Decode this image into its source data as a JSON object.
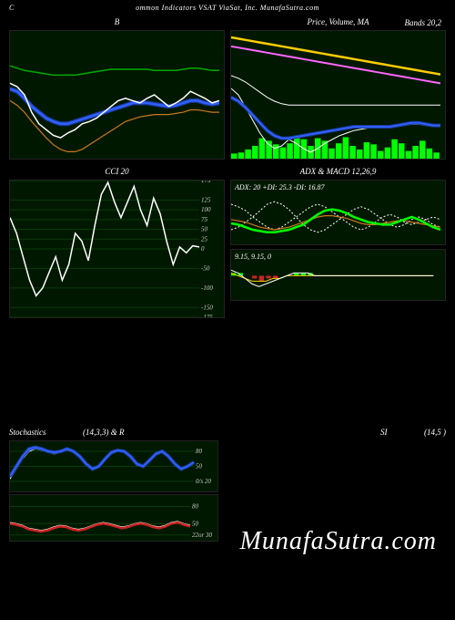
{
  "header": {
    "left": "C",
    "main": "ommon Indicators VSAT ViaSat, Inc. MunafaSutra.com"
  },
  "watermark": "MunafaSutra.com",
  "colors": {
    "bg_panel": "#001800",
    "grid": "#0a3a0a",
    "white": "#ffffff",
    "blue": "#3060ff",
    "darkblue": "#1a3a9a",
    "green": "#00aa00",
    "bright_green": "#00ff00",
    "orange": "#cc7722",
    "yellow": "#ffcc00",
    "magenta": "#ff66ff",
    "red": "#cc2222",
    "gray": "#888888"
  },
  "panels": {
    "topleft": {
      "title": "B",
      "height": 140,
      "series": {
        "white": [
          95,
          92,
          85,
          70,
          60,
          55,
          50,
          48,
          52,
          55,
          60,
          62,
          65,
          70,
          75,
          80,
          82,
          80,
          78,
          82,
          85,
          80,
          75,
          78,
          82,
          88,
          85,
          82,
          78,
          80
        ],
        "blue_thick": [
          90,
          88,
          82,
          75,
          70,
          65,
          62,
          60,
          60,
          62,
          64,
          66,
          68,
          70,
          72,
          74,
          76,
          78,
          78,
          78,
          77,
          76,
          75,
          76,
          78,
          80,
          80,
          78,
          77,
          78
        ],
        "green": [
          110,
          108,
          106,
          105,
          104,
          103,
          102,
          102,
          102,
          102,
          103,
          104,
          105,
          106,
          107,
          107,
          107,
          107,
          107,
          107,
          106,
          106,
          106,
          106,
          107,
          108,
          108,
          107,
          106,
          106
        ],
        "orange": [
          80,
          76,
          70,
          62,
          55,
          48,
          42,
          38,
          36,
          36,
          38,
          42,
          46,
          50,
          54,
          58,
          62,
          64,
          66,
          67,
          68,
          68,
          68,
          69,
          70,
          72,
          72,
          71,
          70,
          70
        ]
      }
    },
    "topright": {
      "title": "Price, Volume, MA",
      "extra_title": "Bands 20,2",
      "height": 140,
      "series": {
        "yellow": [
          135,
          134,
          133,
          132,
          131,
          130,
          129,
          128,
          127,
          126,
          125,
          124,
          123,
          122,
          121,
          120,
          119,
          118,
          117,
          116,
          115,
          114,
          113,
          112,
          111,
          110,
          109,
          108,
          107,
          106
        ],
        "magenta": [
          128,
          127,
          126,
          125,
          124,
          123,
          122,
          121,
          120,
          119,
          118,
          117,
          116,
          115,
          114,
          113,
          112,
          111,
          110,
          109,
          108,
          107,
          106,
          105,
          104,
          103,
          102,
          101,
          100,
          99
        ],
        "white_upper": [
          105,
          103,
          100,
          96,
          92,
          88,
          85,
          83,
          82,
          82,
          82,
          82,
          82,
          82,
          82,
          82,
          82,
          82,
          82,
          82,
          82,
          82,
          82,
          82,
          82,
          82,
          82,
          82,
          82,
          82
        ],
        "white_lower": [
          95,
          90,
          80,
          70,
          60,
          52,
          48,
          50,
          55,
          52,
          48,
          45,
          48,
          52,
          55,
          58,
          60,
          62,
          63,
          64,
          65,
          65,
          65,
          65,
          66,
          67,
          67,
          66,
          65,
          65
        ],
        "blue": [
          88,
          85,
          80,
          74,
          68,
          62,
          58,
          56,
          56,
          57,
          58,
          59,
          60,
          61,
          62,
          63,
          64,
          65,
          65,
          65,
          65,
          65,
          65,
          66,
          67,
          68,
          68,
          67,
          66,
          66
        ]
      },
      "volume": [
        10,
        12,
        18,
        25,
        40,
        35,
        28,
        22,
        30,
        45,
        38,
        25,
        40,
        35,
        20,
        30,
        42,
        25,
        18,
        32,
        28,
        15,
        22,
        38,
        30,
        15,
        25,
        35,
        20,
        12
      ]
    },
    "cci": {
      "title": "CCI 20",
      "height": 150,
      "ylim": [
        -175,
        175
      ],
      "yticks": [
        175,
        125,
        100,
        75,
        50,
        25,
        0,
        -50,
        -100,
        -150,
        -175
      ],
      "series": [
        80,
        40,
        -20,
        -80,
        -120,
        -100,
        -60,
        -20,
        -80,
        -40,
        40,
        20,
        -30,
        60,
        140,
        170,
        120,
        80,
        120,
        160,
        100,
        60,
        130,
        90,
        20,
        -40,
        5,
        -10,
        8,
        5
      ]
    },
    "adx": {
      "title": "ADX  & MACD 12,26,9",
      "annotation": "ADX: 20  +DI: 25.3 -DI: 16.87",
      "height": 70,
      "series": {
        "green_thick": [
          25,
          24,
          22,
          20,
          19,
          18,
          18,
          19,
          20,
          22,
          24,
          28,
          32,
          35,
          36,
          35,
          33,
          30,
          28,
          26,
          25,
          24,
          24,
          26,
          28,
          30,
          28,
          25,
          22,
          20
        ],
        "white_dash1": [
          40,
          38,
          35,
          30,
          26,
          22,
          20,
          22,
          26,
          30,
          34,
          38,
          40,
          38,
          34,
          30,
          26,
          22,
          20,
          22,
          26,
          30,
          32,
          30,
          26,
          24,
          26,
          28,
          30,
          28
        ],
        "white_dash2": [
          20,
          22,
          26,
          30,
          35,
          40,
          42,
          40,
          36,
          30,
          24,
          20,
          18,
          20,
          24,
          28,
          32,
          36,
          38,
          36,
          32,
          28,
          24,
          22,
          24,
          28,
          30,
          28,
          24,
          22
        ],
        "orange": [
          28,
          27,
          26,
          24,
          22,
          21,
          20,
          21,
          22,
          24,
          26,
          28,
          30,
          31,
          31,
          30,
          29,
          27,
          25,
          24,
          24,
          25,
          26,
          27,
          27,
          26,
          25,
          24,
          23,
          22
        ]
      }
    },
    "macd": {
      "annotation": "9.15, 9.15, 0",
      "height": 55,
      "series": {
        "line_white": [
          2,
          1,
          -1,
          -3,
          -4,
          -3,
          -2,
          -1,
          0,
          1,
          1,
          1,
          0,
          0,
          0,
          0,
          0,
          0,
          0,
          0,
          0,
          0,
          0,
          0,
          0,
          0,
          0,
          0,
          0,
          0
        ],
        "line_yellow": [
          1,
          0,
          -1,
          -2,
          -2,
          -2,
          -1,
          -1,
          0,
          0,
          0,
          0,
          0,
          0,
          0,
          0,
          0,
          0,
          0,
          0,
          0,
          0,
          0,
          0,
          0,
          0,
          0,
          0,
          0,
          0
        ]
      },
      "histogram": [
        1,
        1,
        0,
        -1,
        -2,
        -1,
        -1,
        0,
        0,
        1,
        1,
        1,
        0,
        0,
        0,
        0,
        0,
        0,
        0,
        0,
        0,
        0,
        0,
        0,
        0,
        0,
        0,
        0,
        0,
        0
      ]
    },
    "stoch_title": {
      "left": "Stochastics",
      "left2": "(14,3,3) & R",
      "right": "SI",
      "right2": "(14,5                          )"
    },
    "stoch": {
      "height": 55,
      "yticks": [
        80,
        50,
        "0/s 20"
      ],
      "series": {
        "blue": [
          30,
          50,
          70,
          85,
          88,
          85,
          80,
          78,
          80,
          85,
          80,
          70,
          55,
          45,
          50,
          65,
          78,
          82,
          80,
          70,
          55,
          50,
          62,
          75,
          80,
          70,
          55,
          45,
          50,
          58
        ],
        "white": [
          25,
          45,
          65,
          80,
          85,
          82,
          78,
          75,
          78,
          82,
          78,
          68,
          52,
          42,
          48,
          62,
          75,
          80,
          78,
          68,
          52,
          48,
          60,
          72,
          78,
          68,
          52,
          42,
          48,
          55
        ]
      }
    },
    "rsi": {
      "height": 50,
      "yticks": [
        80,
        50,
        "22or 30"
      ],
      "series": {
        "red": [
          50,
          48,
          45,
          40,
          38,
          36,
          38,
          42,
          45,
          44,
          40,
          38,
          40,
          44,
          48,
          50,
          48,
          45,
          42,
          44,
          48,
          50,
          48,
          44,
          42,
          45,
          50,
          52,
          48,
          45
        ],
        "white": [
          52,
          50,
          47,
          42,
          40,
          38,
          40,
          44,
          47,
          46,
          42,
          40,
          42,
          46,
          50,
          52,
          50,
          47,
          44,
          46,
          50,
          52,
          50,
          46,
          44,
          47,
          52,
          54,
          50,
          47
        ]
      }
    }
  }
}
